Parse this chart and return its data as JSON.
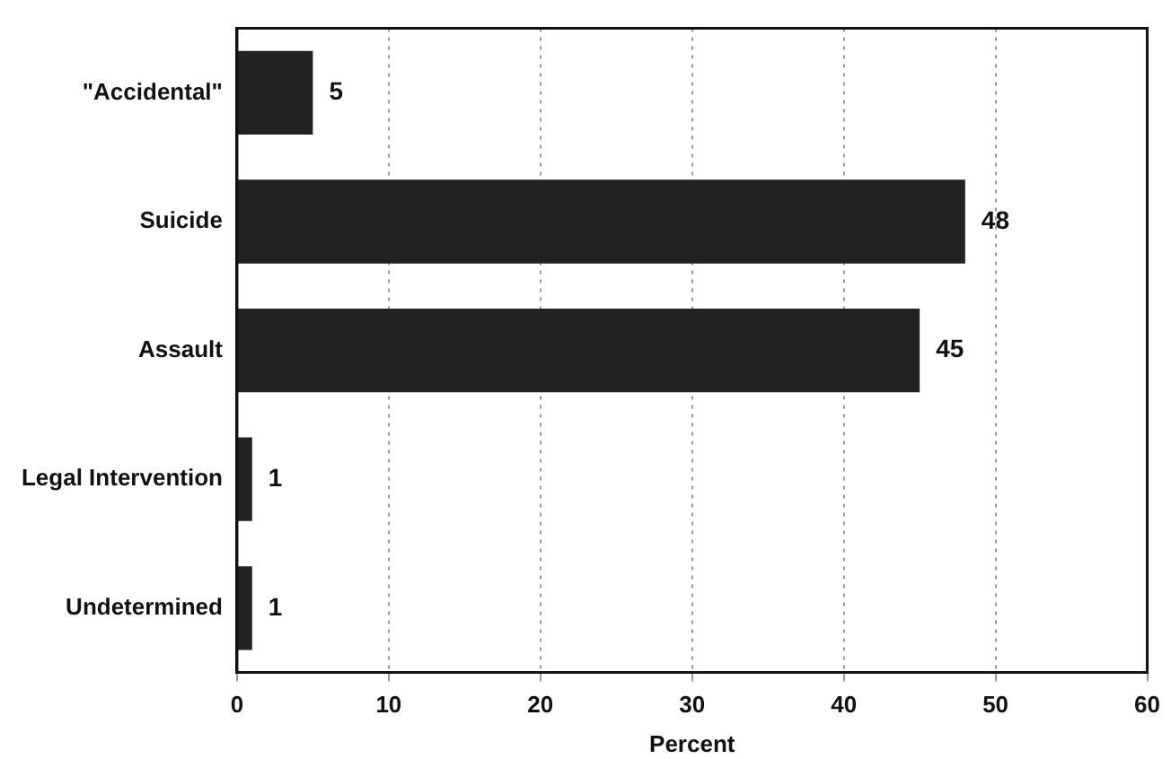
{
  "chart_data": {
    "type": "bar",
    "orientation": "horizontal",
    "xlabel": "Percent",
    "categories": [
      "\"Accidental\"",
      "Suicide",
      "Assault",
      "Legal Intervention",
      "Undetermined"
    ],
    "values": [
      5,
      48,
      45,
      1,
      1
    ],
    "color": "#222222",
    "xlim": [
      0,
      60
    ],
    "xticks": [
      0,
      10,
      20,
      30,
      40,
      50,
      60
    ],
    "grid": "x",
    "data_labels": true,
    "legend": false
  }
}
